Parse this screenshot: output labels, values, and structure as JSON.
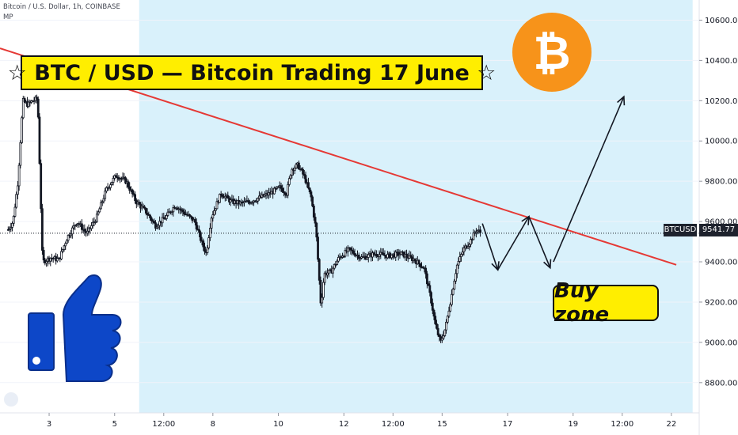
{
  "header": {
    "symbol_line": "Bitcoin / U.S. Dollar, 1h, COINBASE",
    "indicator_line": "MP"
  },
  "banner": {
    "text": "☆ BTC / USD — Bitcoin Trading 17 June ☆"
  },
  "callout": {
    "text": "Buy zone"
  },
  "bitcoin_logo": {
    "glyph": "₿",
    "color": "#f7931a"
  },
  "thumbs_up": {
    "icon": "thumbs-up-icon",
    "color": "#0d47c8"
  },
  "price_tag": {
    "ticker": "BTCUSD",
    "value": "9541.77"
  },
  "colors": {
    "candle": "#131722",
    "trendline": "#e53935",
    "highlight": "#d9f1fb",
    "axis_text": "#131722"
  },
  "chart_data": {
    "type": "candlestick",
    "title": "",
    "xlabel": "",
    "ylabel": "",
    "ylim": [
      8650,
      10700
    ],
    "y_ticks": [
      {
        "value": 8800,
        "label": "8800.00"
      },
      {
        "value": 9000,
        "label": "9000.00"
      },
      {
        "value": 9200,
        "label": "9200.00"
      },
      {
        "value": 9400,
        "label": "9400.00"
      },
      {
        "value": 9600,
        "label": "9600.00"
      },
      {
        "value": 9800,
        "label": "9800.00"
      },
      {
        "value": 10000,
        "label": "10000.00"
      },
      {
        "value": 10200,
        "label": "10200.00"
      },
      {
        "value": 10400,
        "label": "10400.00"
      },
      {
        "value": 10600,
        "label": "10600.00"
      }
    ],
    "x_ticks": [
      {
        "pos": 1.25,
        "label": "3"
      },
      {
        "pos": 3.25,
        "label": "5"
      },
      {
        "pos": 4.75,
        "label": "12:00"
      },
      {
        "pos": 6.25,
        "label": "8"
      },
      {
        "pos": 8.25,
        "label": "10"
      },
      {
        "pos": 10.25,
        "label": "12"
      },
      {
        "pos": 11.75,
        "label": "12:00"
      },
      {
        "pos": 13.25,
        "label": "15"
      },
      {
        "pos": 15.25,
        "label": "17"
      },
      {
        "pos": 17.25,
        "label": "19"
      },
      {
        "pos": 18.75,
        "label": "12:00"
      },
      {
        "pos": 20.25,
        "label": "22"
      }
    ],
    "x_range": [
      -0.25,
      21.1
    ],
    "highlight_range": [
      4.0,
      20.9
    ],
    "last_price": 9541.77,
    "price_anchors": [
      [
        0.0,
        9560
      ],
      [
        0.15,
        9600
      ],
      [
        0.3,
        9800
      ],
      [
        0.45,
        10200
      ],
      [
        0.6,
        10180
      ],
      [
        0.75,
        10200
      ],
      [
        0.9,
        10210
      ],
      [
        1.05,
        9400
      ],
      [
        1.3,
        9420
      ],
      [
        1.55,
        9410
      ],
      [
        1.8,
        9520
      ],
      [
        2.1,
        9600
      ],
      [
        2.4,
        9540
      ],
      [
        2.7,
        9620
      ],
      [
        3.0,
        9760
      ],
      [
        3.3,
        9830
      ],
      [
        3.6,
        9800
      ],
      [
        3.9,
        9700
      ],
      [
        4.2,
        9650
      ],
      [
        4.5,
        9580
      ],
      [
        4.8,
        9620
      ],
      [
        5.1,
        9680
      ],
      [
        5.4,
        9640
      ],
      [
        5.7,
        9600
      ],
      [
        5.9,
        9500
      ],
      [
        6.05,
        9440
      ],
      [
        6.2,
        9620
      ],
      [
        6.5,
        9740
      ],
      [
        6.8,
        9700
      ],
      [
        7.1,
        9690
      ],
      [
        7.4,
        9700
      ],
      [
        7.7,
        9720
      ],
      [
        8.0,
        9740
      ],
      [
        8.3,
        9770
      ],
      [
        8.5,
        9740
      ],
      [
        8.65,
        9860
      ],
      [
        8.85,
        9880
      ],
      [
        9.05,
        9820
      ],
      [
        9.25,
        9720
      ],
      [
        9.4,
        9560
      ],
      [
        9.55,
        9180
      ],
      [
        9.65,
        9340
      ],
      [
        9.85,
        9350
      ],
      [
        10.1,
        9420
      ],
      [
        10.4,
        9460
      ],
      [
        10.8,
        9420
      ],
      [
        11.2,
        9440
      ],
      [
        11.6,
        9430
      ],
      [
        12.0,
        9440
      ],
      [
        12.4,
        9410
      ],
      [
        12.7,
        9370
      ],
      [
        12.9,
        9220
      ],
      [
        13.05,
        9080
      ],
      [
        13.2,
        9000
      ],
      [
        13.35,
        9070
      ],
      [
        13.5,
        9200
      ],
      [
        13.7,
        9380
      ],
      [
        13.9,
        9460
      ],
      [
        14.1,
        9500
      ],
      [
        14.3,
        9560
      ],
      [
        14.45,
        9541.77
      ]
    ],
    "trendline": {
      "start": [
        -0.25,
        10460
      ],
      "end": [
        20.4,
        9385
      ]
    },
    "projection_arrows": [
      {
        "path": [
          [
            14.48,
            9590
          ],
          [
            14.95,
            9360
          ]
        ]
      },
      {
        "path": [
          [
            14.95,
            9360
          ],
          [
            15.9,
            9625
          ]
        ]
      },
      {
        "path": [
          [
            15.9,
            9625
          ],
          [
            16.55,
            9370
          ]
        ]
      },
      {
        "path": [
          [
            16.65,
            9400
          ],
          [
            18.8,
            10220
          ]
        ]
      }
    ]
  }
}
